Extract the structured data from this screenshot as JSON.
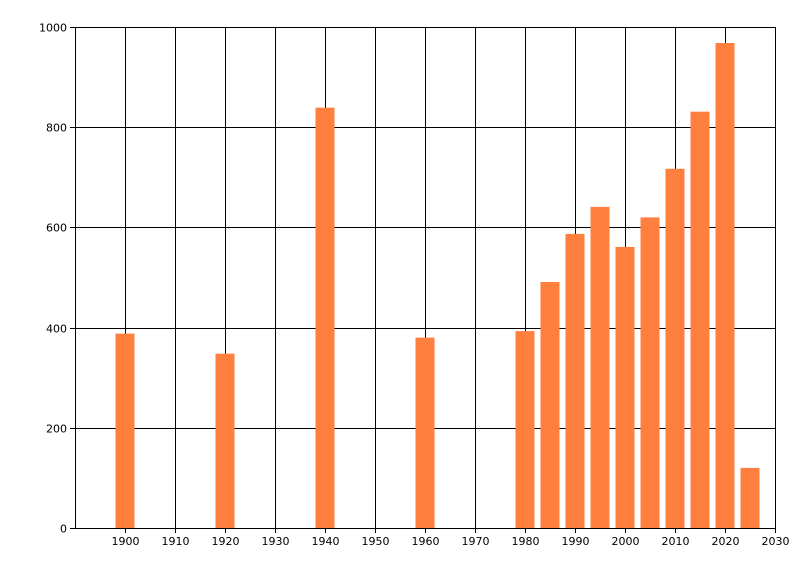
{
  "chart_data": {
    "type": "bar",
    "title": "",
    "xlabel": "",
    "ylabel": "",
    "xlim": [
      1890,
      2030
    ],
    "ylim": [
      0,
      1000
    ],
    "x_ticks": [
      1900,
      1910,
      1920,
      1930,
      1940,
      1950,
      1960,
      1970,
      1980,
      1990,
      2000,
      2010,
      2020,
      2030
    ],
    "y_ticks": [
      0,
      200,
      400,
      600,
      800,
      1000
    ],
    "grid": true,
    "bar_color": "#ff7f3f",
    "x": [
      1900,
      1920,
      1940,
      1960,
      1980,
      1985,
      1990,
      1995,
      2000,
      2005,
      2010,
      2015,
      2020,
      2025
    ],
    "values": [
      388,
      348,
      839,
      380,
      393,
      491,
      587,
      641,
      561,
      620,
      717,
      831,
      968,
      120
    ]
  }
}
